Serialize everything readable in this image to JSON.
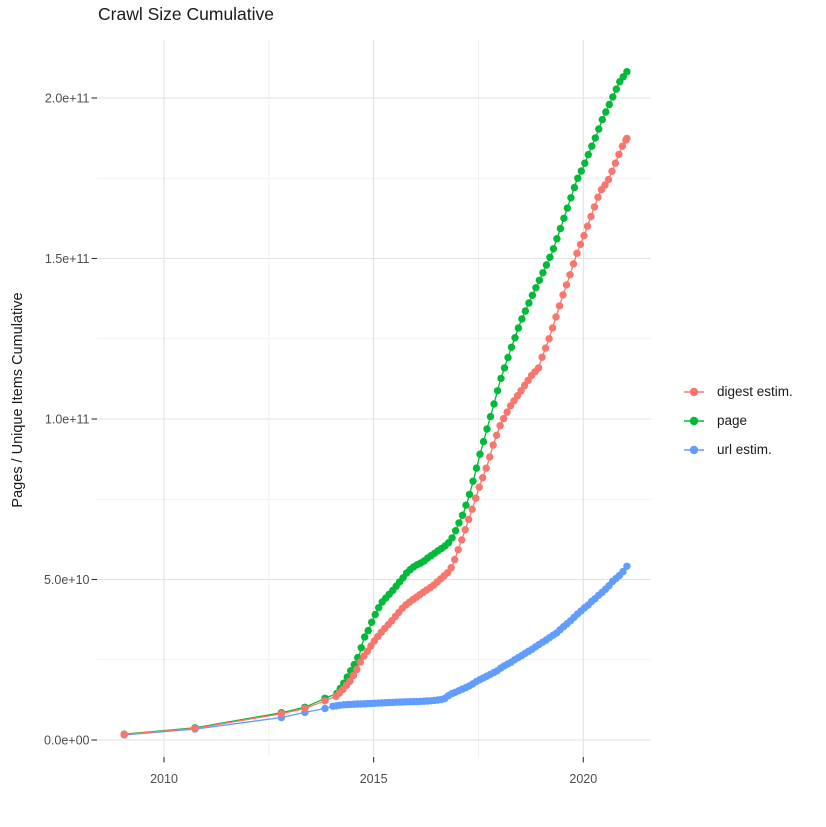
{
  "title": "Crawl Size Cumulative",
  "y_axis": {
    "title": "Pages / Unique Items Cumulative",
    "ticks": [
      {
        "label": "0.0e+00",
        "value": 0
      },
      {
        "label": "5.0e+10",
        "value": 50
      },
      {
        "label": "1.0e+11",
        "value": 100
      },
      {
        "label": "1.5e+11",
        "value": 150
      },
      {
        "label": "2.0e+11",
        "value": 200
      }
    ],
    "minor_values": [
      25,
      75,
      125,
      175
    ]
  },
  "x_axis": {
    "ticks": [
      {
        "label": "2010",
        "value": 2010
      },
      {
        "label": "2015",
        "value": 2015
      },
      {
        "label": "2020",
        "value": 2020
      }
    ],
    "minor_values": [
      2012.5,
      2017.5
    ]
  },
  "legend": {
    "items": [
      {
        "label": "digest estim.",
        "slug": "digest-estim",
        "color": "#F8766D"
      },
      {
        "label": "page",
        "slug": "page",
        "color": "#00BA38"
      },
      {
        "label": "url estim.",
        "slug": "url-estim",
        "color": "#619CFF"
      }
    ]
  },
  "style": {
    "background": "#FFFFFF",
    "grid_major": "#E2E2E2",
    "grid_minor": "#EDEDED",
    "tick_mark": "#333333",
    "tick_label_color": "#4D4D4D",
    "text_color": "#1A1A1A",
    "series_colors": {
      "digest-estim": "#F8766D",
      "page": "#00BA38",
      "url-estim": "#619CFF"
    }
  },
  "chart_data": {
    "type": "line",
    "marker": "circle",
    "title": "Crawl Size Cumulative",
    "xlabel": "",
    "ylabel": "Pages / Unique Items Cumulative",
    "x_domain": [
      2008.4,
      2021.6
    ],
    "y_domain_billions": [
      -5,
      218
    ],
    "grid": true,
    "legend_position": "right",
    "value_unit": "billions of pages / unique items (1 = 1e9)",
    "series": [
      {
        "name": "digest estim.",
        "slug": "digest-estim",
        "color": "#F8766D",
        "dense_from": 2014.1,
        "points": [
          [
            2009.05,
            1.7
          ],
          [
            2010.74,
            3.6
          ],
          [
            2012.8,
            8.2
          ],
          [
            2013.36,
            9.8
          ],
          [
            2013.84,
            12.2
          ],
          [
            2014.1,
            13.6
          ],
          [
            2014.3,
            16.2
          ],
          [
            2014.45,
            18.6
          ],
          [
            2014.6,
            22.0
          ],
          [
            2014.72,
            25.3
          ],
          [
            2014.82,
            27.1
          ],
          [
            2014.95,
            29.6
          ],
          [
            2015.03,
            31.1
          ],
          [
            2015.19,
            33.7
          ],
          [
            2015.39,
            36.5
          ],
          [
            2015.55,
            39.0
          ],
          [
            2015.72,
            41.6
          ],
          [
            2015.93,
            43.7
          ],
          [
            2016.03,
            44.6
          ],
          [
            2016.2,
            46.2
          ],
          [
            2016.41,
            48.0
          ],
          [
            2016.6,
            50.2
          ],
          [
            2016.8,
            52.5
          ],
          [
            2016.89,
            54.6
          ],
          [
            2017.04,
            60.1
          ],
          [
            2017.2,
            66.1
          ],
          [
            2017.36,
            72.3
          ],
          [
            2017.52,
            78.9
          ],
          [
            2017.71,
            85.6
          ],
          [
            2017.85,
            91.9
          ],
          [
            2018.03,
            98.4
          ],
          [
            2018.25,
            103.8
          ],
          [
            2018.5,
            108.5
          ],
          [
            2018.76,
            113.5
          ],
          [
            2018.93,
            115.8
          ],
          [
            2019.01,
            119.0
          ],
          [
            2019.19,
            125.2
          ],
          [
            2019.35,
            131.8
          ],
          [
            2019.51,
            138.4
          ],
          [
            2019.68,
            144.8
          ],
          [
            2019.84,
            151.3
          ],
          [
            2020.04,
            157.9
          ],
          [
            2020.22,
            164.4
          ],
          [
            2020.4,
            170.9
          ],
          [
            2020.58,
            174.0
          ],
          [
            2020.76,
            179.5
          ],
          [
            2020.92,
            184.7
          ],
          [
            2021.04,
            187.4
          ]
        ]
      },
      {
        "name": "page",
        "slug": "page",
        "color": "#00BA38",
        "dense_from": 2014.12,
        "points": [
          [
            2009.05,
            1.8
          ],
          [
            2010.74,
            3.8
          ],
          [
            2012.8,
            8.5
          ],
          [
            2013.36,
            10.2
          ],
          [
            2013.84,
            13.0
          ],
          [
            2014.12,
            14.5
          ],
          [
            2014.26,
            17.1
          ],
          [
            2014.37,
            19.6
          ],
          [
            2014.46,
            21.7
          ],
          [
            2014.55,
            23.8
          ],
          [
            2014.67,
            27.0
          ],
          [
            2014.73,
            30.1
          ],
          [
            2014.79,
            32.2
          ],
          [
            2014.88,
            34.3
          ],
          [
            2014.96,
            36.9
          ],
          [
            2015.03,
            38.9
          ],
          [
            2015.11,
            41.0
          ],
          [
            2015.19,
            42.8
          ],
          [
            2015.32,
            44.7
          ],
          [
            2015.43,
            46.2
          ],
          [
            2015.53,
            47.8
          ],
          [
            2015.63,
            49.4
          ],
          [
            2015.72,
            50.8
          ],
          [
            2015.79,
            52.1
          ],
          [
            2015.89,
            53.3
          ],
          [
            2015.99,
            54.3
          ],
          [
            2016.09,
            54.9
          ],
          [
            2016.19,
            55.6
          ],
          [
            2016.27,
            56.5
          ],
          [
            2016.39,
            57.6
          ],
          [
            2016.5,
            58.6
          ],
          [
            2016.62,
            59.7
          ],
          [
            2016.74,
            60.8
          ],
          [
            2016.84,
            62.2
          ],
          [
            2016.92,
            64.2
          ],
          [
            2017.0,
            66.6
          ],
          [
            2017.14,
            70.6
          ],
          [
            2017.28,
            76.2
          ],
          [
            2017.44,
            84.0
          ],
          [
            2017.54,
            89.2
          ],
          [
            2017.68,
            95.8
          ],
          [
            2017.84,
            103.2
          ],
          [
            2018.01,
            111.6
          ],
          [
            2018.25,
            121.0
          ],
          [
            2018.51,
            130.4
          ],
          [
            2018.76,
            137.8
          ],
          [
            2019.0,
            144.5
          ],
          [
            2019.26,
            152.0
          ],
          [
            2019.46,
            159.6
          ],
          [
            2019.68,
            168.0
          ],
          [
            2019.84,
            174.2
          ],
          [
            2020.0,
            178.5
          ],
          [
            2020.14,
            183.0
          ],
          [
            2020.32,
            188.6
          ],
          [
            2020.46,
            193.5
          ],
          [
            2020.65,
            198.8
          ],
          [
            2020.86,
            204.9
          ],
          [
            2021.04,
            208.2
          ]
        ]
      },
      {
        "name": "url estim.",
        "slug": "url-estim",
        "color": "#619CFF",
        "dense_from": 2014.03,
        "points": [
          [
            2009.05,
            1.6
          ],
          [
            2010.74,
            3.4
          ],
          [
            2012.8,
            7.0
          ],
          [
            2013.36,
            8.6
          ],
          [
            2013.84,
            9.8
          ],
          [
            2014.03,
            10.5
          ],
          [
            2014.3,
            11.0
          ],
          [
            2014.6,
            11.2
          ],
          [
            2015.0,
            11.4
          ],
          [
            2015.4,
            11.7
          ],
          [
            2015.8,
            11.9
          ],
          [
            2016.1,
            12.0
          ],
          [
            2016.35,
            12.2
          ],
          [
            2016.55,
            12.5
          ],
          [
            2016.66,
            12.7
          ],
          [
            2016.74,
            13.2
          ],
          [
            2016.81,
            14.2
          ],
          [
            2016.9,
            14.6
          ],
          [
            2017.02,
            15.3
          ],
          [
            2017.14,
            16.0
          ],
          [
            2017.26,
            16.7
          ],
          [
            2017.38,
            17.6
          ],
          [
            2017.47,
            18.4
          ],
          [
            2017.58,
            19.1
          ],
          [
            2017.7,
            19.9
          ],
          [
            2017.82,
            20.7
          ],
          [
            2017.94,
            21.5
          ],
          [
            2018.05,
            22.6
          ],
          [
            2018.17,
            23.5
          ],
          [
            2018.29,
            24.3
          ],
          [
            2018.41,
            25.4
          ],
          [
            2018.53,
            26.3
          ],
          [
            2018.65,
            27.3
          ],
          [
            2018.77,
            28.2
          ],
          [
            2018.89,
            29.3
          ],
          [
            2019.01,
            30.3
          ],
          [
            2019.13,
            31.3
          ],
          [
            2019.25,
            32.4
          ],
          [
            2019.37,
            33.4
          ],
          [
            2019.49,
            34.9
          ],
          [
            2019.62,
            36.3
          ],
          [
            2019.73,
            37.5
          ],
          [
            2019.82,
            38.8
          ],
          [
            2019.92,
            39.9
          ],
          [
            2020.01,
            41.0
          ],
          [
            2020.12,
            42.1
          ],
          [
            2020.2,
            43.2
          ],
          [
            2020.28,
            44.0
          ],
          [
            2020.36,
            45.0
          ],
          [
            2020.46,
            46.1
          ],
          [
            2020.54,
            47.1
          ],
          [
            2020.64,
            48.4
          ],
          [
            2020.71,
            49.6
          ],
          [
            2020.81,
            50.6
          ],
          [
            2020.92,
            52.0
          ],
          [
            2021.04,
            54.1
          ]
        ]
      }
    ]
  }
}
